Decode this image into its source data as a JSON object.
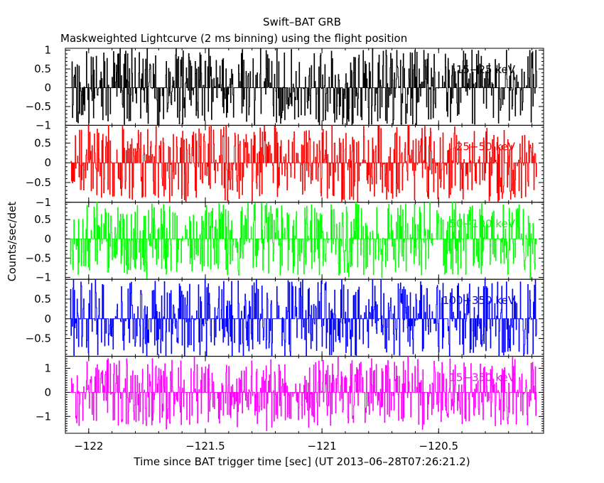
{
  "title": "Swift–BAT GRB",
  "subtitle": "Maskweighted Lightcurve (2 ms binning) using the flight position",
  "xlabel": "Time since BAT trigger time [sec] (UT 2013–06–28T07:26:21.2)",
  "ylabel": "Counts/sec/det",
  "chart_data": {
    "type": "line",
    "x_range": [
      -122.1,
      -120.05
    ],
    "x_ticks": [
      -122,
      -121.5,
      -121,
      -120.5
    ],
    "x_tick_labels": [
      "−122",
      "−121.5",
      "−121",
      "−120.5"
    ],
    "bin_width_sec": 0.002,
    "panels": [
      {
        "name": "15−25 keV",
        "color": "#000000",
        "ylim": [
          -1,
          1.05
        ],
        "y_ticks": [
          -1,
          -0.5,
          0,
          0.5,
          1
        ],
        "y_tick_labels": [
          "−1",
          "−0.5",
          "0",
          "0.5",
          "1"
        ],
        "amplitude": 1.0,
        "seed": 11
      },
      {
        "name": "25−50 keV",
        "color": "#ff0000",
        "ylim": [
          -1,
          0.95
        ],
        "y_ticks": [
          -1,
          -0.5,
          0,
          0.5
        ],
        "y_tick_labels": [
          "−1",
          "−0.5",
          "0",
          "0.5"
        ],
        "amplitude": 0.95,
        "seed": 23
      },
      {
        "name": "50−100 keV",
        "color": "#00ff00",
        "ylim": [
          -1.05,
          0.95
        ],
        "y_ticks": [
          -1,
          -0.5,
          0,
          0.5
        ],
        "y_tick_labels": [
          "−1",
          "−0.5",
          "0",
          "0.5"
        ],
        "amplitude": 0.95,
        "seed": 37
      },
      {
        "name": "100−350 keV",
        "color": "#0000ff",
        "ylim": [
          -0.95,
          1.0
        ],
        "y_ticks": [
          -0.5,
          0,
          0.5
        ],
        "y_tick_labels": [
          "−0.5",
          "0",
          "0.5"
        ],
        "amplitude": 0.95,
        "seed": 41
      },
      {
        "name": "15−350 keV",
        "color": "#ff00ff",
        "ylim": [
          -1.7,
          1.5
        ],
        "y_ticks": [
          -1,
          0,
          1
        ],
        "y_tick_labels": [
          "−1",
          "0",
          "1"
        ],
        "amplitude": 1.4,
        "seed": 53
      }
    ]
  }
}
